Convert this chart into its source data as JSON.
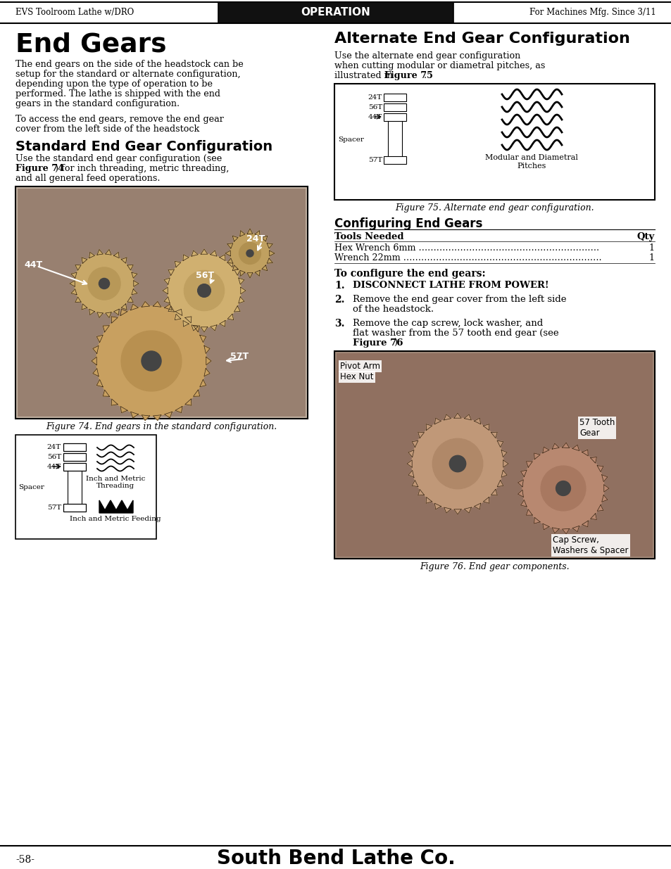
{
  "page_bg": "#ffffff",
  "header_bg": "#111111",
  "header_left": "EVS Toolroom Lathe w/DRO",
  "header_center": "OPERATION",
  "header_right": "For Machines Mfg. Since 3/11",
  "footer_page": "-58-",
  "footer_brand": "South Bend Lathe Co.",
  "title_main": "End Gears",
  "title_right": "Alternate End Gear Configuration",
  "section_standard": "Standard End Gear Configuration",
  "section_configuring": "Configuring End Gears",
  "fig74_caption": "Figure 74. End gears in the standard configuration.",
  "fig75_caption": "Figure 75. Alternate end gear configuration.",
  "fig76_caption": "Figure 76. End gear components.",
  "tools_header": "Tools Needed",
  "tools_qty_header": "Qty",
  "tools": [
    [
      "Hex Wrench 6mm …………………………………………………….",
      "1"
    ],
    [
      "Wrench 22mm ………………………………………………………….",
      "1"
    ]
  ],
  "configure_heading": "To configure the end gears:",
  "left_body_para1_lines": [
    "The end gears on the side of the headstock can be",
    "setup for the standard or alternate configuration,",
    "depending upon the type of operation to be",
    "performed. The lathe is shipped with the end",
    "gears in the standard configuration."
  ],
  "left_body_para2_lines": [
    "To access the end gears, remove the end gear",
    "cover from the left side of the headstock"
  ],
  "standard_body_line1": "Use the standard end gear configuration (see",
  "standard_body_bold": "Figure 74",
  "standard_body_line2b": ") for inch threading, metric threading,",
  "standard_body_line3": "and all general feed operations.",
  "alt_body_line1": "Use the alternate end gear configuration",
  "alt_body_line2": "when cutting modular or diametral pitches, as",
  "alt_body_pre": "illustrated in ",
  "alt_body_bold": "Figure 75",
  "alt_body_post": ".",
  "step1": "DISCONNECT LATHE FROM POWER!",
  "step2_lines": [
    "Remove the end gear cover from the left side",
    "of the headstock."
  ],
  "step3_lines": [
    "Remove the cap screw, lock washer, and",
    "flat washer from the 57 tooth end gear (see",
    "Figure 76",
    ")."
  ]
}
